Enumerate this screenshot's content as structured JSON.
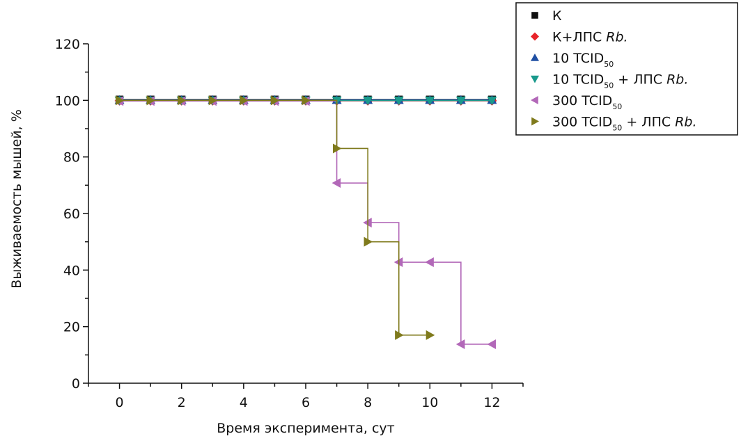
{
  "chart_data": {
    "type": "line",
    "step": true,
    "xlabel": "Время эксперимента, сут",
    "ylabel": "Выживаемость мышей, %",
    "xlim": [
      -1,
      13
    ],
    "ylim": [
      0,
      120
    ],
    "xticks": [
      0,
      2,
      4,
      6,
      8,
      10,
      12
    ],
    "yticks": [
      0,
      20,
      40,
      60,
      80,
      100,
      120
    ],
    "grid": false,
    "legend_position": "top-right",
    "series": [
      {
        "name": "К",
        "legend": {
          "base": "К",
          "sub": "",
          "after": "",
          "italic": ""
        },
        "color": "#111111",
        "marker": "square",
        "x": [
          0,
          1,
          2,
          3,
          4,
          5,
          6,
          7,
          8,
          9,
          10,
          11,
          12
        ],
        "y": [
          100,
          100,
          100,
          100,
          100,
          100,
          100,
          100,
          100,
          100,
          100,
          100,
          100
        ]
      },
      {
        "name": "К+ЛПС Rb.",
        "legend": {
          "base": "К+ЛПС ",
          "sub": "",
          "after": "",
          "italic": "Rb."
        },
        "color": "#e8242a",
        "marker": "diamond",
        "x": [
          0,
          1,
          2,
          3,
          4,
          5,
          6,
          7,
          8,
          9,
          10,
          11,
          12
        ],
        "y": [
          100,
          100,
          100,
          100,
          100,
          100,
          100,
          100,
          100,
          100,
          100,
          100,
          100
        ]
      },
      {
        "name": "10 TCID50",
        "legend": {
          "base": "10 TCID",
          "sub": "50",
          "after": "",
          "italic": ""
        },
        "color": "#1f4fa3",
        "marker": "triangle-up",
        "x": [
          0,
          1,
          2,
          3,
          4,
          5,
          6,
          7,
          8,
          9,
          10,
          11,
          12
        ],
        "y": [
          100,
          100,
          100,
          100,
          100,
          100,
          100,
          100,
          100,
          100,
          100,
          100,
          100
        ]
      },
      {
        "name": "10 TCID50 + ЛПС Rb.",
        "legend": {
          "base": "10 TCID",
          "sub": "50",
          "after": " + ЛПС ",
          "italic": "Rb."
        },
        "color": "#1a9a8c",
        "marker": "triangle-down",
        "x": [
          0,
          1,
          2,
          3,
          4,
          5,
          6,
          7,
          8,
          9,
          10,
          11,
          12
        ],
        "y": [
          100,
          100,
          100,
          100,
          100,
          100,
          100,
          100,
          100,
          100,
          100,
          100,
          100
        ]
      },
      {
        "name": "300 TCID50",
        "legend": {
          "base": "300 TCID",
          "sub": "50",
          "after": "",
          "italic": ""
        },
        "color": "#b268b8",
        "marker": "triangle-left",
        "x": [
          0,
          1,
          2,
          3,
          4,
          5,
          6,
          7,
          8,
          9,
          10,
          11,
          12
        ],
        "y": [
          100,
          100,
          100,
          100,
          100,
          100,
          100,
          71,
          57,
          43,
          43,
          14,
          14
        ]
      },
      {
        "name": "300 TCID50 + ЛПС Rb.",
        "legend": {
          "base": "300 TCID",
          "sub": "50",
          "after": " + ЛПС ",
          "italic": "Rb."
        },
        "color": "#7f7a1c",
        "marker": "triangle-right",
        "x": [
          0,
          1,
          2,
          3,
          4,
          5,
          6,
          7,
          8,
          9,
          10
        ],
        "y": [
          100,
          100,
          100,
          100,
          100,
          100,
          100,
          83,
          50,
          17,
          17
        ]
      }
    ]
  }
}
